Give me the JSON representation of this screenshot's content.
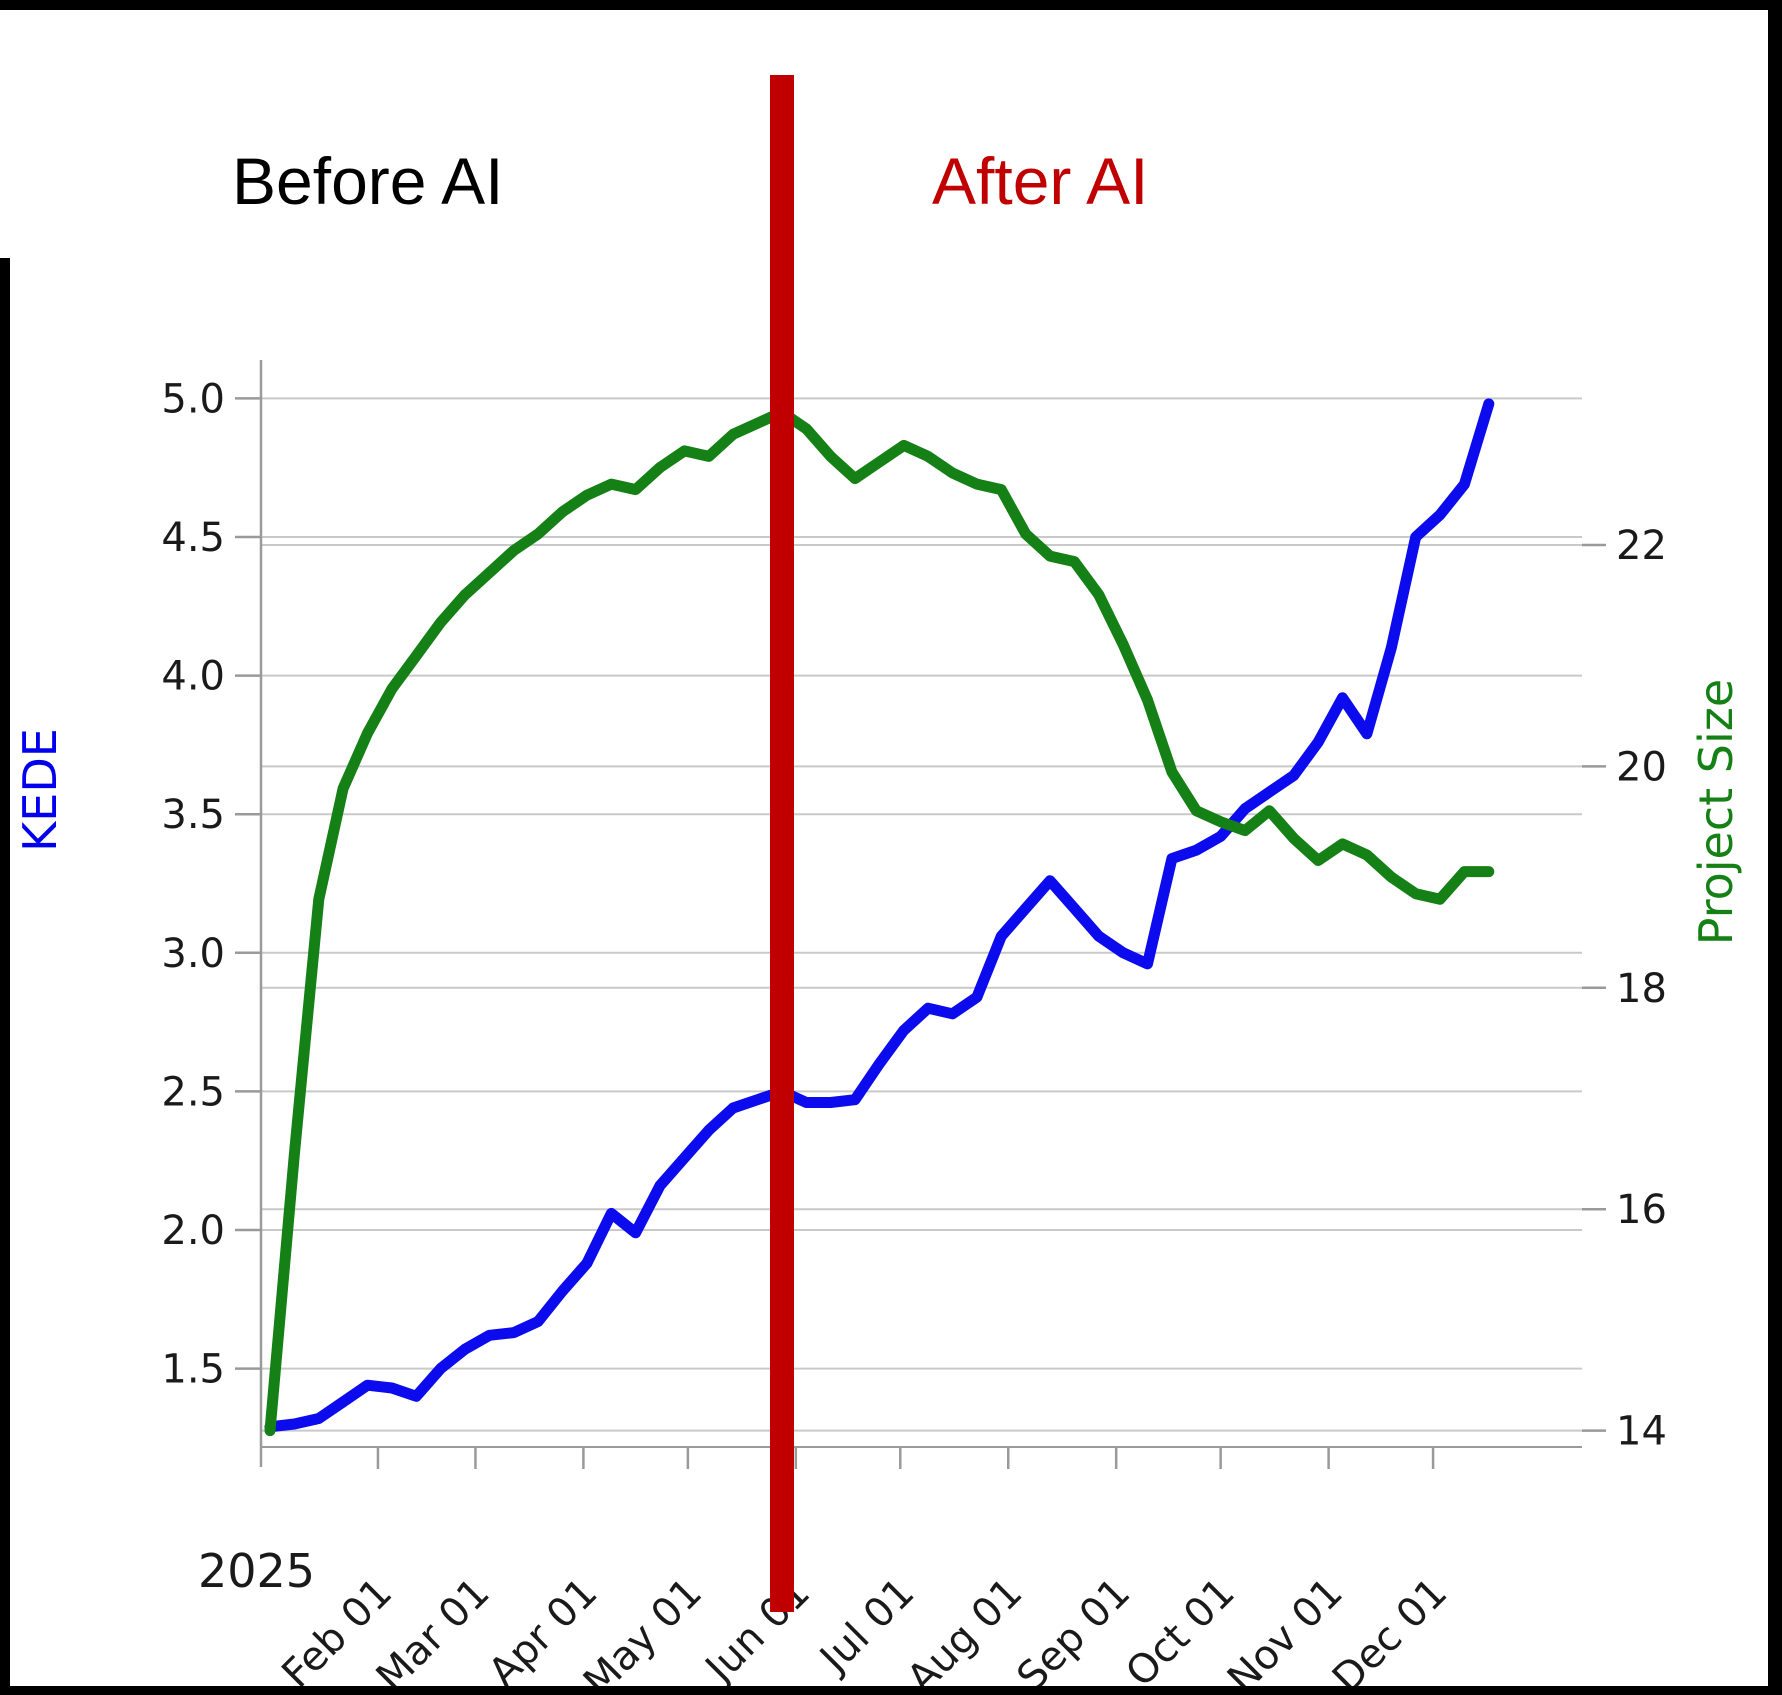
{
  "annotations": {
    "before_label": "Before AI",
    "after_label": "After AI",
    "after_color": "#c00000"
  },
  "divider": {
    "color": "#c00000",
    "position_month_offset": 4.83
  },
  "chart_data": {
    "type": "line",
    "title": "",
    "grid": true,
    "legend": "none",
    "x_axis": {
      "year_label": "2025",
      "tick_labels": [
        "Feb 01",
        "Mar 01",
        "Apr 01",
        "May 01",
        "Jun 01",
        "Jul 01",
        "Aug 01",
        "Sep 01",
        "Oct 01",
        "Nov 01",
        "Dec 01"
      ],
      "tick_day_of_year": [
        31,
        59,
        90,
        120,
        151,
        181,
        212,
        243,
        273,
        304,
        334
      ],
      "start_date": "2025-01-01",
      "interval_days": 7
    },
    "left_axis": {
      "label": "KEDE",
      "label_color": "#0000ee",
      "tick_labels": [
        "1.5",
        "2.0",
        "2.5",
        "3.0",
        "3.5",
        "4.0",
        "4.5",
        "5.0"
      ],
      "ticks": [
        1.5,
        2.0,
        2.5,
        3.0,
        3.5,
        4.0,
        4.5,
        5.0
      ],
      "range": [
        1.22,
        5.14
      ]
    },
    "right_axis": {
      "label": "Project Size",
      "label_color": "#158015",
      "tick_labels": [
        "14",
        "16",
        "18",
        "20",
        "22"
      ],
      "ticks": [
        14,
        16,
        18,
        20,
        22
      ],
      "range": [
        13.87,
        23.67
      ]
    },
    "series": [
      {
        "name": "KEDE",
        "axis": "left",
        "color": "#0b0bee",
        "values": [
          1.29,
          1.3,
          1.32,
          1.38,
          1.44,
          1.43,
          1.4,
          1.5,
          1.57,
          1.62,
          1.63,
          1.67,
          1.78,
          1.88,
          2.06,
          1.99,
          2.16,
          2.26,
          2.36,
          2.44,
          2.47,
          2.5,
          2.46,
          2.46,
          2.47,
          2.6,
          2.72,
          2.8,
          2.78,
          2.84,
          3.06,
          3.16,
          3.26,
          3.16,
          3.06,
          3.0,
          2.96,
          3.34,
          3.37,
          3.42,
          3.52,
          3.58,
          3.64,
          3.76,
          3.92,
          3.79,
          4.1,
          4.5,
          4.58,
          4.69,
          4.98
        ]
      },
      {
        "name": "Project Size",
        "axis": "right",
        "color": "#158015",
        "values": [
          14.0,
          16.5,
          18.8,
          19.8,
          20.3,
          20.7,
          21.0,
          21.3,
          21.55,
          21.75,
          21.95,
          22.1,
          22.3,
          22.45,
          22.55,
          22.5,
          22.7,
          22.85,
          22.8,
          23.0,
          23.1,
          23.2,
          23.05,
          22.8,
          22.6,
          22.75,
          22.9,
          22.8,
          22.65,
          22.55,
          22.5,
          22.1,
          21.9,
          21.85,
          21.55,
          21.1,
          20.6,
          19.95,
          19.6,
          19.5,
          19.42,
          19.6,
          19.35,
          19.15,
          19.3,
          19.2,
          19.0,
          18.85,
          18.8,
          19.05,
          19.05
        ]
      }
    ]
  }
}
